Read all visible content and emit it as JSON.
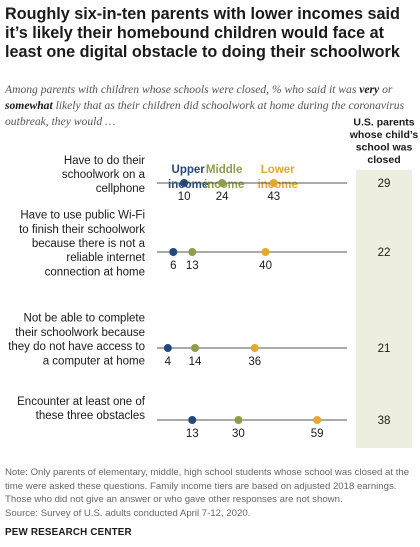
{
  "title": "Roughly six-in-ten parents with lower incomes said it’s likely their homebound children would face at least one digital obstacle to doing their schoolwork",
  "subtitle": {
    "part1": "Among parents with children whose schools were closed, % who said it was ",
    "very": "very",
    "or": " or ",
    "somewhat": "somewhat",
    "part2": " likely that as their children did schoolwork at home during the coronavirus outbreak, they would …"
  },
  "total_header": [
    "U.S. parents",
    "whose child’s",
    "school was",
    "closed"
  ],
  "chart_data": {
    "type": "dot",
    "series": [
      {
        "name": "Upper income",
        "label_lines": [
          "Upper",
          "income"
        ],
        "color": "#24487a"
      },
      {
        "name": "Middle income",
        "label_lines": [
          "Middle",
          "income"
        ],
        "color": "#8d9e4a"
      },
      {
        "name": "Lower income",
        "label_lines": [
          "Lower",
          "income"
        ],
        "color": "#e4a82d"
      }
    ],
    "categories": [
      {
        "label_lines": [
          "Have to do their",
          "schoolwork on a",
          "cellphone"
        ],
        "values": [
          10,
          24,
          43
        ],
        "total": 29
      },
      {
        "label_lines": [
          "Have to use public Wi-Fi",
          "to finish their schoolwork",
          "because there is not a",
          "reliable internet",
          "connection at home"
        ],
        "values": [
          6,
          13,
          40
        ],
        "total": 22
      },
      {
        "label_lines": [
          "Not be able to complete",
          "their schoolwork because",
          "they do not have access to",
          "a computer at home"
        ],
        "values": [
          4,
          14,
          36
        ],
        "total": 21
      },
      {
        "label_lines": [
          "Encounter at least one of",
          "these three obstacles"
        ],
        "values": [
          13,
          30,
          59
        ],
        "total": 38
      }
    ],
    "xlim": [
      0,
      70
    ]
  },
  "note": "Note: Only parents of elementary, middle, high school students whose school was closed at the time were asked these questions. Family income tiers are based on adjusted 2018 earnings. Those who did not give an answer or who gave other responses are not shown.",
  "source": "Source: Survey of U.S. adults conducted April 7-12, 2020.",
  "brand": "PEW RESEARCH CENTER"
}
